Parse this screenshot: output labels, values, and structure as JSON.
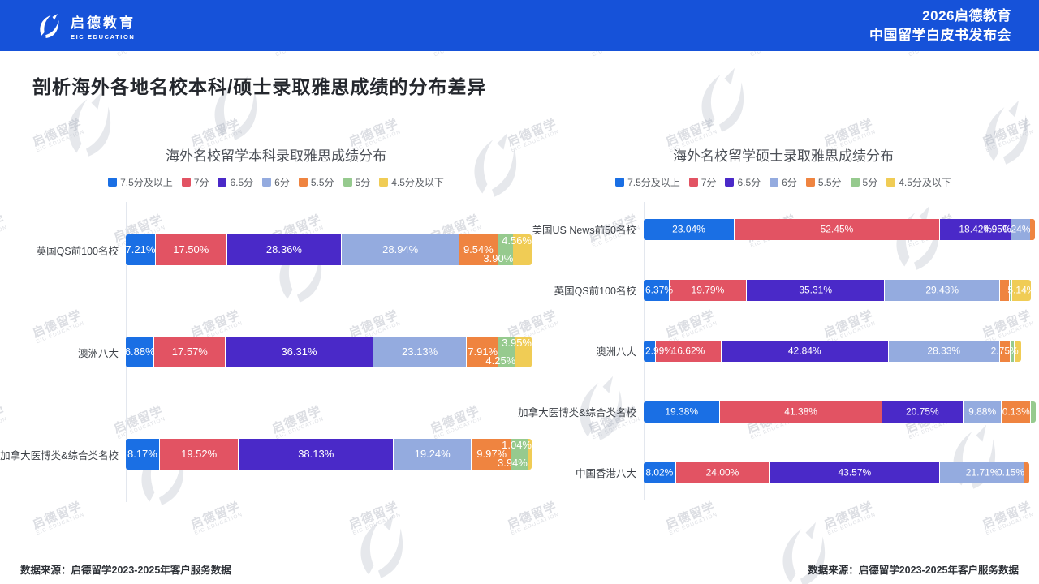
{
  "header": {
    "logo_cn": "启德教育",
    "logo_en": "EIC EDUCATION",
    "event_line1": "2026启德教育",
    "event_line2": "中国留学白皮书发布会"
  },
  "title": "剖析海外各地名校本科/硕士录取雅思成绩的分布差异",
  "watermark": {
    "line1": "启德留学",
    "line2": "EIC EDUCATION"
  },
  "legend_labels": [
    "7.5分及以上",
    "7分",
    "6.5分",
    "6分",
    "5.5分",
    "5分",
    "4.5分及以下"
  ],
  "series_colors": [
    "#1a6fe4",
    "#e25363",
    "#4a29c8",
    "#94abdf",
    "#ef8440",
    "#96ca8e",
    "#f0cc55"
  ],
  "header_bg": "#1652d9",
  "charts": [
    {
      "title": "海外名校留学本科录取雅思成绩分布",
      "source": "数据来源：启德留学2023-2025年客户服务数据",
      "rows": [
        {
          "category": "英国QS前100名校",
          "segments": [
            {
              "s": 0,
              "w": 7.21,
              "label": "7.21%",
              "lp": "in"
            },
            {
              "s": 1,
              "w": 17.5,
              "label": "17.50%",
              "lp": "in"
            },
            {
              "s": 2,
              "w": 28.36,
              "label": "28.36%",
              "lp": "in"
            },
            {
              "s": 3,
              "w": 28.94,
              "label": "28.94%",
              "lp": "in"
            },
            {
              "s": 4,
              "w": 9.54,
              "label": "9.54%",
              "lp": "in"
            },
            {
              "s": 5,
              "w": 3.9,
              "label": "3.90%",
              "lp": "down"
            },
            {
              "s": 6,
              "w": 4.56,
              "label": "4.56%",
              "lp": "up"
            }
          ]
        },
        {
          "category": "澳洲八大",
          "segments": [
            {
              "s": 0,
              "w": 6.88,
              "label": "6.88%",
              "lp": "in"
            },
            {
              "s": 1,
              "w": 17.57,
              "label": "17.57%",
              "lp": "in"
            },
            {
              "s": 2,
              "w": 36.31,
              "label": "36.31%",
              "lp": "in"
            },
            {
              "s": 3,
              "w": 23.13,
              "label": "23.13%",
              "lp": "in"
            },
            {
              "s": 4,
              "w": 7.91,
              "label": "7.91%",
              "lp": "in"
            },
            {
              "s": 5,
              "w": 4.25,
              "label": "4.25%",
              "lp": "down"
            },
            {
              "s": 6,
              "w": 3.95,
              "label": "3.95%",
              "lp": "up"
            }
          ]
        },
        {
          "category": "加拿大医博类&综合类名校",
          "segments": [
            {
              "s": 0,
              "w": 8.17,
              "label": "8.17%",
              "lp": "in"
            },
            {
              "s": 1,
              "w": 19.52,
              "label": "19.52%",
              "lp": "in"
            },
            {
              "s": 2,
              "w": 38.13,
              "label": "38.13%",
              "lp": "in"
            },
            {
              "s": 3,
              "w": 19.24,
              "label": "19.24%",
              "lp": "in"
            },
            {
              "s": 4,
              "w": 9.97,
              "label": "9.97%",
              "lp": "in"
            },
            {
              "s": 5,
              "w": 3.94,
              "label": "3.94%",
              "lp": "down"
            },
            {
              "s": 6,
              "w": 1.04,
              "label": "1.04%",
              "lp": "up"
            }
          ]
        }
      ]
    },
    {
      "title": "海外名校留学硕士录取雅思成绩分布",
      "source": "数据来源：启德留学2023-2025年客户服务数据",
      "rows": [
        {
          "category": "美国US News前50名校",
          "segments": [
            {
              "s": 0,
              "w": 23.04,
              "label": "23.04%",
              "lp": "in"
            },
            {
              "s": 1,
              "w": 52.45,
              "label": "52.45%",
              "lp": "in"
            },
            {
              "s": 2,
              "w": 18.42,
              "label": "18.42%",
              "lp": "in"
            },
            {
              "s": 3,
              "w": 4.95,
              "label": "4.95%",
              "lp": "before"
            },
            {
              "s": 4,
              "w": 1.1,
              "label": "0.24%",
              "lp": "before"
            }
          ]
        },
        {
          "category": "英国QS前100名校",
          "segments": [
            {
              "s": 0,
              "w": 6.37,
              "label": "6.37%",
              "lp": "after"
            },
            {
              "s": 1,
              "w": 19.79,
              "label": "19.79%",
              "lp": "in"
            },
            {
              "s": 2,
              "w": 35.31,
              "label": "35.31%",
              "lp": "in"
            },
            {
              "s": 3,
              "w": 29.43,
              "label": "29.43%",
              "lp": "in"
            },
            {
              "s": 4,
              "w": 2.4,
              "label": "",
              "lp": "in"
            },
            {
              "s": 5,
              "w": 0.6,
              "label": "",
              "lp": "in"
            },
            {
              "s": 6,
              "w": 5.14,
              "label": "5.14%",
              "lp": "in"
            }
          ]
        },
        {
          "category": "澳洲八大",
          "segments": [
            {
              "s": 0,
              "w": 2.99,
              "label": "2.99%",
              "lp": "after"
            },
            {
              "s": 1,
              "w": 16.62,
              "label": "16.62%",
              "lp": "in"
            },
            {
              "s": 2,
              "w": 42.84,
              "label": "42.84%",
              "lp": "in"
            },
            {
              "s": 3,
              "w": 28.33,
              "label": "28.33%",
              "lp": "in"
            },
            {
              "s": 4,
              "w": 2.75,
              "label": "2.75%",
              "lp": "in"
            },
            {
              "s": 5,
              "w": 1.0,
              "label": "",
              "lp": "in"
            },
            {
              "s": 6,
              "w": 2.0,
              "label": "",
              "lp": "in"
            }
          ]
        },
        {
          "category": "加拿大医博类&综合类名校",
          "segments": [
            {
              "s": 0,
              "w": 19.38,
              "label": "19.38%",
              "lp": "in"
            },
            {
              "s": 1,
              "w": 41.38,
              "label": "41.38%",
              "lp": "in"
            },
            {
              "s": 2,
              "w": 20.75,
              "label": "20.75%",
              "lp": "in"
            },
            {
              "s": 3,
              "w": 9.88,
              "label": "9.88%",
              "lp": "in"
            },
            {
              "s": 4,
              "w": 7.4,
              "label": "0.13%",
              "lp": "in"
            },
            {
              "s": 5,
              "w": 1.4,
              "label": "",
              "lp": "in"
            }
          ]
        },
        {
          "category": "中国香港八大",
          "segments": [
            {
              "s": 0,
              "w": 8.02,
              "label": "8.02%",
              "lp": "in"
            },
            {
              "s": 1,
              "w": 24.0,
              "label": "24.00%",
              "lp": "in"
            },
            {
              "s": 2,
              "w": 43.57,
              "label": "43.57%",
              "lp": "in"
            },
            {
              "s": 3,
              "w": 21.71,
              "label": "21.71%",
              "lp": "in"
            },
            {
              "s": 4,
              "w": 1.3,
              "label": "0.15%",
              "lp": "before"
            }
          ]
        }
      ]
    }
  ],
  "chart_data": [
    {
      "type": "bar",
      "orientation": "horizontal-stacked",
      "title": "海外名校留学本科录取雅思成绩分布",
      "unit": "%",
      "xlim": [
        0,
        100
      ],
      "legend_position": "top",
      "categories": [
        "英国QS前100名校",
        "澳洲八大",
        "加拿大医博类&综合类名校"
      ],
      "series": [
        {
          "name": "7.5分及以上",
          "values": [
            7.21,
            6.88,
            8.17
          ]
        },
        {
          "name": "7分",
          "values": [
            17.5,
            17.57,
            19.52
          ]
        },
        {
          "name": "6.5分",
          "values": [
            28.36,
            36.31,
            38.13
          ]
        },
        {
          "name": "6分",
          "values": [
            28.94,
            23.13,
            19.24
          ]
        },
        {
          "name": "5.5分",
          "values": [
            9.54,
            7.91,
            9.97
          ]
        },
        {
          "name": "5分",
          "values": [
            3.9,
            4.25,
            3.94
          ]
        },
        {
          "name": "4.5分及以下",
          "values": [
            4.56,
            3.95,
            1.04
          ]
        }
      ]
    },
    {
      "type": "bar",
      "orientation": "horizontal-stacked",
      "title": "海外名校留学硕士录取雅思成绩分布",
      "unit": "%",
      "xlim": [
        0,
        100
      ],
      "legend_position": "top",
      "categories": [
        "美国US News前50名校",
        "英国QS前100名校",
        "澳洲八大",
        "加拿大医博类&综合类名校",
        "中国香港八大"
      ],
      "series": [
        {
          "name": "7.5分及以上",
          "values": [
            23.04,
            6.37,
            2.99,
            19.38,
            8.02
          ]
        },
        {
          "name": "7分",
          "values": [
            52.45,
            19.79,
            16.62,
            41.38,
            24.0
          ]
        },
        {
          "name": "6.5分",
          "values": [
            18.42,
            35.31,
            42.84,
            20.75,
            43.57
          ]
        },
        {
          "name": "6分",
          "values": [
            4.95,
            29.43,
            28.33,
            9.88,
            21.71
          ]
        },
        {
          "name": "5.5分",
          "values": [
            0.24,
            null,
            2.75,
            0.13,
            0.15
          ]
        },
        {
          "name": "5分",
          "values": [
            null,
            null,
            null,
            null,
            null
          ]
        },
        {
          "name": "4.5分及以下",
          "values": [
            null,
            5.14,
            null,
            null,
            null
          ]
        }
      ]
    }
  ]
}
